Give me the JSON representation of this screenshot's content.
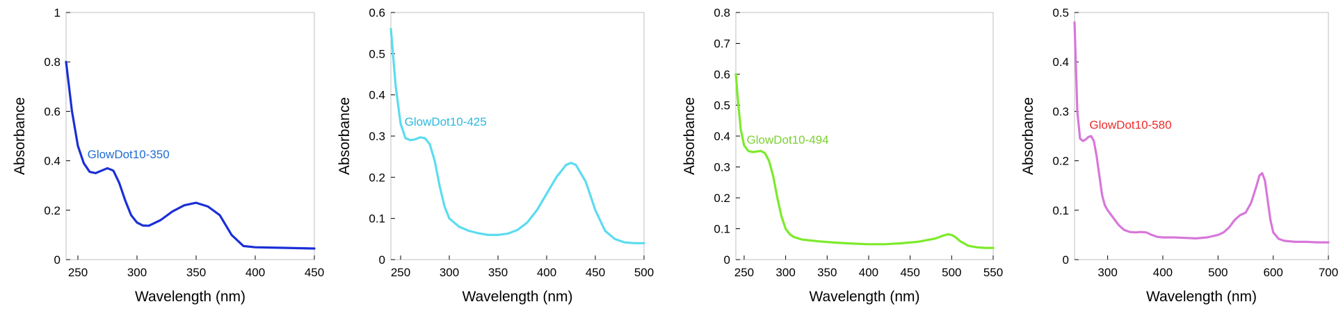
{
  "chart_data": [
    {
      "type": "line",
      "title": "",
      "xlabel": "Wavelength (nm)",
      "ylabel": "Absorbance",
      "xlim": [
        240,
        450
      ],
      "ylim": [
        0,
        1
      ],
      "xticks": [
        250,
        300,
        350,
        400,
        450
      ],
      "yticks": [
        0,
        0.2,
        0.4,
        0.6,
        0.8,
        1
      ],
      "ytick_labels": [
        "0",
        "0.2",
        "0.4",
        "0.6",
        "0.8",
        "1"
      ],
      "grid": false,
      "series": [
        {
          "color": "#1a2fd6",
          "x": [
            240,
            245,
            250,
            255,
            260,
            265,
            270,
            275,
            280,
            285,
            290,
            295,
            300,
            305,
            310,
            320,
            330,
            340,
            350,
            360,
            370,
            380,
            390,
            400,
            420,
            450
          ],
          "y": [
            0.8,
            0.6,
            0.46,
            0.39,
            0.355,
            0.35,
            0.36,
            0.37,
            0.36,
            0.31,
            0.24,
            0.18,
            0.15,
            0.138,
            0.137,
            0.16,
            0.195,
            0.22,
            0.23,
            0.215,
            0.18,
            0.1,
            0.055,
            0.05,
            0.048,
            0.045
          ]
        }
      ],
      "annotations": [
        {
          "text": "GlowDot10-350",
          "x": 258,
          "y": 0.41,
          "color": "#1f6cd1"
        }
      ]
    },
    {
      "type": "line",
      "title": "",
      "xlabel": "Wavelength (nm)",
      "ylabel": "Absorbance",
      "xlim": [
        240,
        500
      ],
      "ylim": [
        0,
        0.6
      ],
      "xticks": [
        250,
        300,
        350,
        400,
        450,
        500
      ],
      "yticks": [
        0,
        0.1,
        0.2,
        0.3,
        0.4,
        0.5,
        0.6
      ],
      "ytick_labels": [
        "0",
        "0.1",
        "0.2",
        "0.3",
        "0.4",
        "0.5",
        "0.6"
      ],
      "grid": false,
      "series": [
        {
          "color": "#5bdcef",
          "x": [
            240,
            245,
            250,
            255,
            260,
            265,
            270,
            275,
            280,
            285,
            290,
            295,
            300,
            310,
            320,
            330,
            340,
            350,
            360,
            370,
            380,
            390,
            400,
            410,
            420,
            425,
            430,
            440,
            450,
            460,
            470,
            480,
            490,
            500
          ],
          "y": [
            0.56,
            0.42,
            0.33,
            0.295,
            0.29,
            0.292,
            0.297,
            0.295,
            0.28,
            0.24,
            0.18,
            0.13,
            0.1,
            0.08,
            0.07,
            0.064,
            0.06,
            0.06,
            0.063,
            0.072,
            0.09,
            0.12,
            0.16,
            0.2,
            0.23,
            0.235,
            0.23,
            0.19,
            0.12,
            0.07,
            0.05,
            0.042,
            0.04,
            0.04
          ]
        }
      ],
      "annotations": [
        {
          "text": "GlowDot10-425",
          "x": 254,
          "y": 0.325,
          "color": "#29b9de"
        }
      ]
    },
    {
      "type": "line",
      "title": "",
      "xlabel": "Wavelength (nm)",
      "ylabel": "Absorbance",
      "xlim": [
        240,
        550
      ],
      "ylim": [
        0,
        0.8
      ],
      "xticks": [
        250,
        300,
        350,
        400,
        450,
        500,
        550
      ],
      "yticks": [
        0,
        0.1,
        0.2,
        0.3,
        0.4,
        0.5,
        0.6,
        0.7,
        0.8
      ],
      "ytick_labels": [
        "0",
        "0.1",
        "0.2",
        "0.3",
        "0.4",
        "0.5",
        "0.6",
        "0.7",
        "0.8"
      ],
      "grid": false,
      "series": [
        {
          "color": "#7cea2a",
          "x": [
            240,
            243,
            246,
            250,
            255,
            260,
            265,
            270,
            275,
            280,
            285,
            290,
            295,
            300,
            305,
            310,
            320,
            340,
            360,
            380,
            400,
            420,
            440,
            460,
            480,
            490,
            495,
            500,
            505,
            510,
            520,
            530,
            540,
            550
          ],
          "y": [
            0.6,
            0.5,
            0.42,
            0.37,
            0.352,
            0.348,
            0.35,
            0.352,
            0.345,
            0.32,
            0.27,
            0.2,
            0.14,
            0.1,
            0.082,
            0.073,
            0.065,
            0.059,
            0.055,
            0.052,
            0.05,
            0.05,
            0.053,
            0.058,
            0.068,
            0.078,
            0.082,
            0.08,
            0.072,
            0.06,
            0.045,
            0.04,
            0.038,
            0.038
          ]
        }
      ],
      "annotations": [
        {
          "text": "GlowDot10-494",
          "x": 253,
          "y": 0.375,
          "color": "#7bd22e"
        }
      ]
    },
    {
      "type": "line",
      "title": "",
      "xlabel": "Wavelength (nm)",
      "ylabel": "Absorbance",
      "xlim": [
        240,
        700
      ],
      "ylim": [
        0,
        0.5
      ],
      "xticks": [
        300,
        400,
        500,
        600,
        700
      ],
      "yticks": [
        0,
        0.1,
        0.2,
        0.3,
        0.4,
        0.5
      ],
      "ytick_labels": [
        "0",
        "0.1",
        "0.2",
        "0.3",
        "0.4",
        "0.5"
      ],
      "grid": false,
      "series": [
        {
          "color": "#d777da",
          "x": [
            240,
            245,
            250,
            255,
            260,
            265,
            270,
            275,
            280,
            285,
            290,
            295,
            300,
            310,
            320,
            330,
            340,
            350,
            360,
            370,
            380,
            390,
            400,
            420,
            440,
            460,
            480,
            500,
            510,
            520,
            530,
            540,
            550,
            560,
            570,
            575,
            580,
            585,
            590,
            595,
            600,
            610,
            620,
            640,
            660,
            680,
            700
          ],
          "y": [
            0.48,
            0.3,
            0.245,
            0.24,
            0.243,
            0.248,
            0.25,
            0.24,
            0.21,
            0.17,
            0.13,
            0.11,
            0.1,
            0.085,
            0.07,
            0.06,
            0.056,
            0.055,
            0.056,
            0.055,
            0.05,
            0.046,
            0.045,
            0.045,
            0.044,
            0.043,
            0.045,
            0.05,
            0.055,
            0.065,
            0.08,
            0.09,
            0.095,
            0.115,
            0.15,
            0.17,
            0.175,
            0.16,
            0.12,
            0.08,
            0.055,
            0.042,
            0.038,
            0.036,
            0.036,
            0.035,
            0.035
          ]
        }
      ],
      "annotations": [
        {
          "text": "GlowDot10-580",
          "x": 267,
          "y": 0.265,
          "color": "#ee2a2a"
        }
      ]
    }
  ]
}
